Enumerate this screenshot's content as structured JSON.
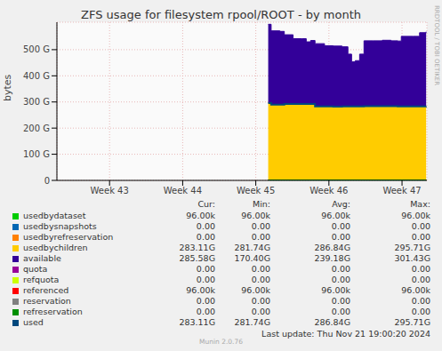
{
  "chart_data": {
    "type": "area",
    "title": "ZFS usage for filesystem rpool/ROOT - by month",
    "y_label": "bytes",
    "grid": true,
    "stacked": true,
    "x": [
      45.17,
      45.21,
      45.33,
      45.39,
      45.51,
      45.63,
      45.69,
      45.75,
      45.81,
      45.94,
      46.06,
      46.18,
      46.26,
      46.31,
      46.36,
      46.42,
      46.48,
      46.6,
      46.73,
      46.85,
      46.94,
      46.99,
      47.15,
      47.24,
      47.33
    ],
    "xlim": [
      42.28,
      47.34
    ],
    "xticks": [
      {
        "value": 43,
        "label": "Week 43"
      },
      {
        "value": 44,
        "label": "Week 44"
      },
      {
        "value": 45,
        "label": "Week 45"
      },
      {
        "value": 46,
        "label": "Week 46"
      },
      {
        "value": 47,
        "label": "Week 47"
      }
    ],
    "ylim": [
      0,
      605
    ],
    "yticks": [
      0,
      {
        "value": 100,
        "label": "100 G"
      },
      {
        "value": 200,
        "label": "200 G"
      },
      {
        "value": 300,
        "label": "300 G"
      },
      {
        "value": 400,
        "label": "400 G"
      },
      {
        "value": 500,
        "label": "500 G"
      }
    ],
    "legend_columns": [
      "Cur:",
      "Min:",
      "Avg:",
      "Max:"
    ],
    "series": [
      {
        "name": "usedbydataset",
        "color": "#00cc00",
        "type": "line",
        "stats": [
          "96.00k",
          "96.00k",
          "96.00k",
          "96.00k"
        ],
        "values": [
          9.6e-05,
          9.6e-05,
          9.6e-05,
          9.6e-05,
          9.6e-05,
          9.6e-05,
          9.6e-05,
          9.6e-05,
          9.6e-05,
          9.6e-05,
          9.6e-05,
          9.6e-05,
          9.6e-05,
          9.6e-05,
          9.6e-05,
          9.6e-05,
          9.6e-05,
          9.6e-05,
          9.6e-05,
          9.6e-05,
          9.6e-05,
          9.6e-05,
          9.6e-05,
          9.6e-05,
          9.6e-05
        ]
      },
      {
        "name": "usedbysnapshots",
        "color": "#0066b3",
        "type": "line",
        "stats": [
          "0.00",
          "0.00",
          "0.00",
          "0.00"
        ],
        "values": [
          0,
          0,
          0,
          0,
          0,
          0,
          0,
          0,
          0,
          0,
          0,
          0,
          0,
          0,
          0,
          0,
          0,
          0,
          0,
          0,
          0,
          0,
          0,
          0,
          0
        ]
      },
      {
        "name": "usedbyrefreservation",
        "color": "#ff8000",
        "type": "line",
        "stats": [
          "0.00",
          "0.00",
          "0.00",
          "0.00"
        ],
        "values": [
          0,
          0,
          0,
          0,
          0,
          0,
          0,
          0,
          0,
          0,
          0,
          0,
          0,
          0,
          0,
          0,
          0,
          0,
          0,
          0,
          0,
          0,
          0,
          0,
          0
        ]
      },
      {
        "name": "usedbychildren",
        "color": "#ffcc00",
        "type": "area",
        "stats": [
          "283.11G",
          "281.74G",
          "286.84G",
          "295.71G"
        ],
        "values": [
          295.71,
          290,
          290,
          292,
          292,
          292,
          292,
          292,
          283,
          283,
          281.74,
          283,
          283,
          283,
          283,
          283,
          284,
          284,
          284,
          284,
          283,
          283,
          283,
          283,
          283.11
        ]
      },
      {
        "name": "available",
        "color": "#330099",
        "type": "area",
        "stats": [
          "285.58G",
          "170.40G",
          "239.18G",
          "301.43G"
        ],
        "values": [
          301.43,
          282,
          280,
          265,
          250,
          250,
          238,
          243,
          240,
          232,
          232,
          228,
          200,
          170.4,
          175,
          200,
          250,
          250,
          252,
          250,
          250,
          268,
          268,
          282,
          285.58
        ]
      },
      {
        "name": "quota",
        "color": "#990099",
        "type": "line",
        "stats": [
          "0.00",
          "0.00",
          "0.00",
          "0.00"
        ],
        "values": [
          0,
          0,
          0,
          0,
          0,
          0,
          0,
          0,
          0,
          0,
          0,
          0,
          0,
          0,
          0,
          0,
          0,
          0,
          0,
          0,
          0,
          0,
          0,
          0,
          0
        ]
      },
      {
        "name": "refquota",
        "color": "#ccff00",
        "type": "line",
        "stats": [
          "0.00",
          "0.00",
          "0.00",
          "0.00"
        ],
        "values": [
          0,
          0,
          0,
          0,
          0,
          0,
          0,
          0,
          0,
          0,
          0,
          0,
          0,
          0,
          0,
          0,
          0,
          0,
          0,
          0,
          0,
          0,
          0,
          0,
          0
        ]
      },
      {
        "name": "referenced",
        "color": "#ff0000",
        "type": "line",
        "stats": [
          "96.00k",
          "96.00k",
          "96.00k",
          "96.00k"
        ],
        "values": [
          9.6e-05,
          9.6e-05,
          9.6e-05,
          9.6e-05,
          9.6e-05,
          9.6e-05,
          9.6e-05,
          9.6e-05,
          9.6e-05,
          9.6e-05,
          9.6e-05,
          9.6e-05,
          9.6e-05,
          9.6e-05,
          9.6e-05,
          9.6e-05,
          9.6e-05,
          9.6e-05,
          9.6e-05,
          9.6e-05,
          9.6e-05,
          9.6e-05,
          9.6e-05,
          9.6e-05,
          9.6e-05
        ]
      },
      {
        "name": "reservation",
        "color": "#808080",
        "type": "line",
        "stats": [
          "0.00",
          "0.00",
          "0.00",
          "0.00"
        ],
        "values": [
          0,
          0,
          0,
          0,
          0,
          0,
          0,
          0,
          0,
          0,
          0,
          0,
          0,
          0,
          0,
          0,
          0,
          0,
          0,
          0,
          0,
          0,
          0,
          0,
          0
        ]
      },
      {
        "name": "refreservation",
        "color": "#008f00",
        "type": "line",
        "stats": [
          "0.00",
          "0.00",
          "0.00",
          "0.00"
        ],
        "values": [
          0,
          0,
          0,
          0,
          0,
          0,
          0,
          0,
          0,
          0,
          0,
          0,
          0,
          0,
          0,
          0,
          0,
          0,
          0,
          0,
          0,
          0,
          0,
          0,
          0
        ]
      },
      {
        "name": "used",
        "color": "#00487d",
        "type": "line",
        "stats": [
          "283.11G",
          "281.74G",
          "286.84G",
          "295.71G"
        ],
        "values": [
          295.71,
          290,
          290,
          292,
          292,
          292,
          292,
          292,
          283,
          283,
          281.74,
          283,
          283,
          283,
          283,
          283,
          284,
          284,
          284,
          284,
          283,
          283,
          283,
          283,
          283.11
        ]
      }
    ],
    "last_update": "Last update: Thu Nov 21 19:00:20 2024",
    "footer": "Munin 2.0.76",
    "watermark": "RRDTOOL / TOBI OETIKER"
  }
}
